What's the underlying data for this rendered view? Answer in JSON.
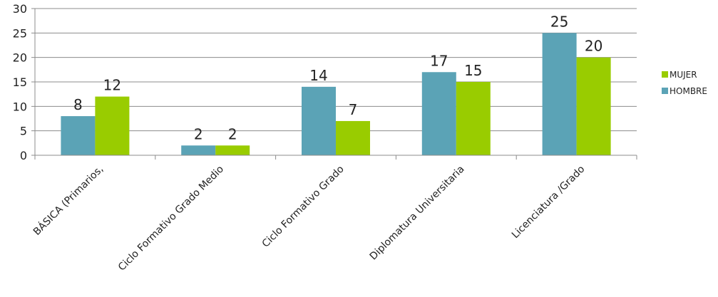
{
  "chart_data": {
    "type": "bar",
    "categories": [
      "BÁSICA (Primarios,",
      "Ciclo Formativo Grado Medio",
      "Ciclo Formativo Grado",
      "Diplomatura Universitaria",
      "Licenciatura /Grado"
    ],
    "series": [
      {
        "name": "HOMBRE",
        "color": "#5ba3b6",
        "values": [
          8,
          2,
          14,
          17,
          25
        ]
      },
      {
        "name": "MUJER",
        "color": "#99cc00",
        "values": [
          12,
          2,
          7,
          15,
          20
        ]
      }
    ],
    "ylim": [
      0,
      30
    ],
    "yticks": [
      0,
      5,
      10,
      15,
      20,
      25,
      30
    ],
    "grid": true,
    "legend": {
      "placement": "right",
      "order": [
        "MUJER",
        "HOMBRE"
      ]
    }
  }
}
